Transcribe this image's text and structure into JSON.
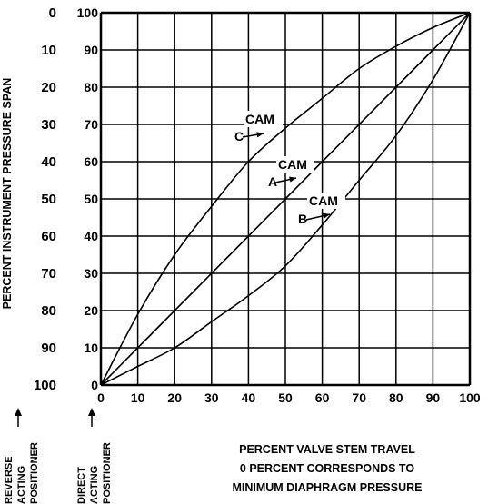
{
  "chart_data": {
    "type": "line",
    "ylabel": "PERCENT INSTRUMENT PRESSURE SPAN",
    "xlabel_lines": [
      "PERCENT VALVE STEM TRAVEL",
      "0 PERCENT CORRESPONDS TO",
      "MINIMUM DIAPHRAGM PRESSURE"
    ],
    "x_ticks": [
      0,
      10,
      20,
      30,
      40,
      50,
      60,
      70,
      80,
      90,
      100
    ],
    "y_ticks_inner": [
      0,
      10,
      20,
      30,
      40,
      50,
      60,
      70,
      80,
      90,
      100
    ],
    "y_ticks_outer": [
      "100",
      "90",
      "80",
      "70",
      "60",
      "50",
      "40",
      "30",
      "20",
      "10",
      "0"
    ],
    "xlim": [
      0,
      100
    ],
    "ylim": [
      0,
      100
    ],
    "grid": true,
    "series": [
      {
        "name": "CAM C",
        "x": [
          0,
          10,
          20,
          30,
          40,
          50,
          60,
          70,
          80,
          90,
          100
        ],
        "y": [
          0,
          19,
          35,
          48,
          60,
          69,
          77,
          85,
          91,
          96,
          100
        ]
      },
      {
        "name": "CAM A",
        "x": [
          0,
          10,
          20,
          30,
          40,
          50,
          60,
          70,
          80,
          90,
          100
        ],
        "y": [
          0,
          10,
          20,
          30,
          40,
          50,
          60,
          70,
          80,
          90,
          100
        ]
      },
      {
        "name": "CAM B",
        "x": [
          0,
          10,
          20,
          30,
          40,
          50,
          60,
          70,
          80,
          90,
          100
        ],
        "y": [
          0,
          5,
          10,
          17,
          24,
          32,
          43,
          55,
          67,
          82,
          100
        ]
      }
    ],
    "annotations": [
      {
        "label_top": "CAM",
        "label_bottom": "C",
        "series": "CAM C"
      },
      {
        "label_top": "CAM",
        "label_bottom": "A",
        "series": "CAM A"
      },
      {
        "label_top": "CAM",
        "label_bottom": "B",
        "series": "CAM B"
      }
    ],
    "positioner_labels": [
      {
        "name": "reverse",
        "lines": [
          "REVERSE",
          "ACTING",
          "POSITIONER"
        ]
      },
      {
        "name": "direct",
        "lines": [
          "DIRECT",
          "ACTING",
          "POSITIONER"
        ]
      }
    ]
  }
}
